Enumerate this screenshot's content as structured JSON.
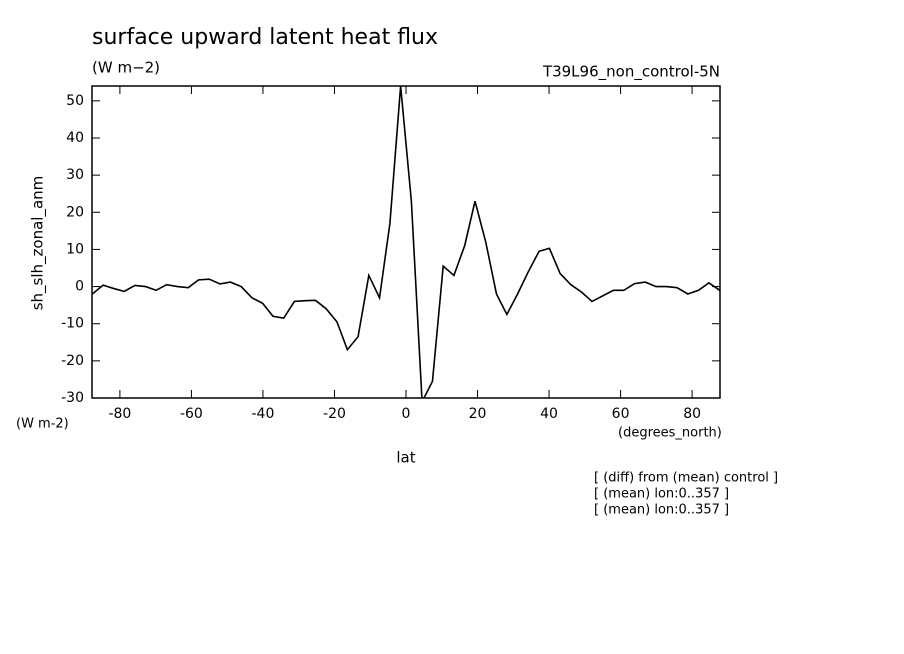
{
  "chart_data": {
    "type": "line",
    "title": "surface upward latent heat flux",
    "units": "(W m−2)",
    "run_label": "T39L96_non_control-5N",
    "y_label": "sh_slh_zonal_anm",
    "y_units": "(W m-2)",
    "x_units": "(degrees_north)",
    "x_label": "lat",
    "notes": [
      "[ (diff) from (mean) control ]",
      "[ (mean) lon:0..357 ]",
      "[ (mean) lon:0..357 ]"
    ],
    "x": [
      -87.7,
      -84.7,
      -81.8,
      -78.8,
      -75.8,
      -72.8,
      -69.9,
      -66.9,
      -63.9,
      -60.9,
      -58.0,
      -55.0,
      -52.0,
      -49.1,
      -46.1,
      -43.1,
      -40.1,
      -37.2,
      -34.2,
      -31.2,
      -28.2,
      -25.3,
      -22.3,
      -19.3,
      -16.4,
      -13.4,
      -10.4,
      -7.4,
      -4.5,
      -1.5,
      1.5,
      4.5,
      7.4,
      10.4,
      13.4,
      16.4,
      19.3,
      22.3,
      25.3,
      28.2,
      31.2,
      34.2,
      37.2,
      40.1,
      43.1,
      46.1,
      49.1,
      52.0,
      55.0,
      58.0,
      60.9,
      63.9,
      66.9,
      69.9,
      72.8,
      75.8,
      78.8,
      81.8,
      84.7,
      87.7
    ],
    "series": [
      {
        "color": "#000000",
        "values": [
          -2,
          0.4,
          -0.5,
          -1.3,
          0.3,
          0,
          -1,
          0.5,
          0,
          -0.3,
          1.8,
          2,
          0.7,
          1.2,
          0,
          -3,
          -4.5,
          -8,
          -8.5,
          -4,
          -3.8,
          -3.7,
          -6,
          -9.5,
          -17,
          -13.5,
          3,
          -3,
          17,
          54,
          23,
          -31,
          -25.5,
          5.5,
          3,
          11,
          23,
          12,
          -2,
          -7.5,
          -2,
          4,
          9.5,
          10.3,
          3.5,
          0.5,
          -1.5,
          -4,
          -2.5,
          -1,
          -1,
          0.8,
          1.2,
          0,
          0,
          -0.3,
          -2,
          -1,
          1,
          -1
        ]
      }
    ],
    "xlim": [
      -87.8,
      87.8
    ],
    "ylim": [
      -30,
      54
    ],
    "xticks": [
      -80,
      -60,
      -40,
      -20,
      0,
      20,
      40,
      60,
      80
    ],
    "yticks": [
      -30,
      -20,
      -10,
      0,
      10,
      20,
      30,
      40,
      50
    ]
  }
}
